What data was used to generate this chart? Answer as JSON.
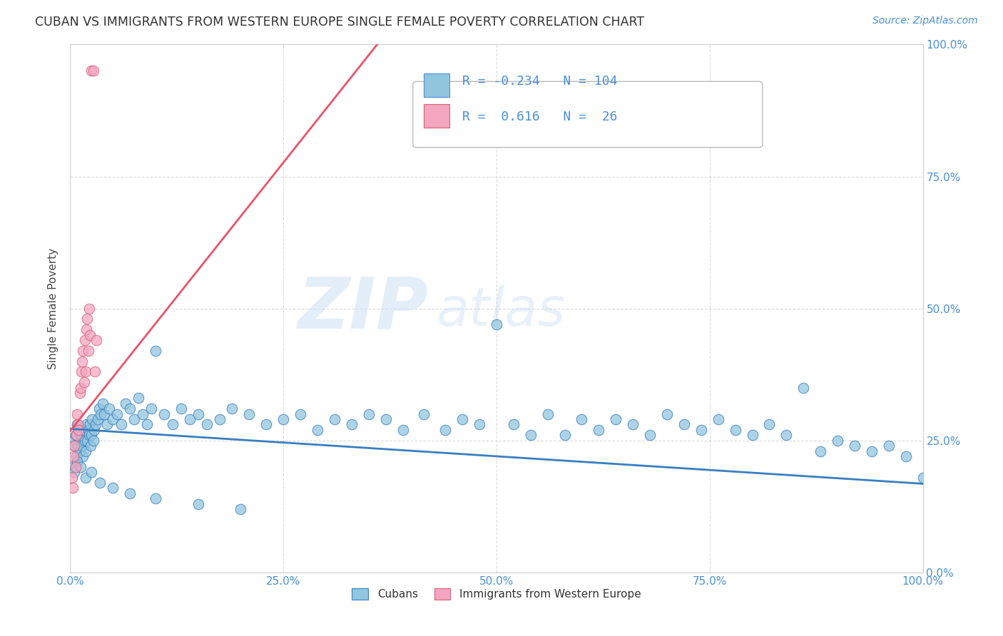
{
  "title": "CUBAN VS IMMIGRANTS FROM WESTERN EUROPE SINGLE FEMALE POVERTY CORRELATION CHART",
  "source": "Source: ZipAtlas.com",
  "ylabel": "Single Female Poverty",
  "xlim": [
    0,
    1.0
  ],
  "ylim": [
    0,
    1.0
  ],
  "xticks": [
    0.0,
    0.25,
    0.5,
    0.75,
    1.0
  ],
  "yticks": [
    0.0,
    0.25,
    0.5,
    0.75,
    1.0
  ],
  "xtick_labels": [
    "0.0%",
    "25.0%",
    "50.0%",
    "75.0%",
    "100.0%"
  ],
  "ytick_labels_right": [
    "0.0%",
    "25.0%",
    "50.0%",
    "75.0%",
    "100.0%"
  ],
  "blue_R": -0.234,
  "blue_N": 104,
  "pink_R": 0.616,
  "pink_N": 26,
  "blue_color": "#92c5de",
  "pink_color": "#f4a6c0",
  "blue_line_color": "#3a7fbf",
  "pink_line_color": "#e8546a",
  "background_color": "#ffffff",
  "watermark_zip": "ZIP",
  "watermark_atlas": "atlas",
  "grid_color": "#cccccc",
  "blue_line_start_y": 0.272,
  "blue_line_end_y": 0.168,
  "pink_line_start_x": 0.0,
  "pink_line_start_y": 0.268,
  "pink_line_end_x": 0.36,
  "pink_line_end_y": 1.0,
  "blue_x": [
    0.003,
    0.005,
    0.006,
    0.007,
    0.008,
    0.009,
    0.01,
    0.011,
    0.012,
    0.013,
    0.014,
    0.015,
    0.016,
    0.017,
    0.018,
    0.019,
    0.02,
    0.021,
    0.022,
    0.023,
    0.024,
    0.025,
    0.026,
    0.027,
    0.028,
    0.03,
    0.032,
    0.034,
    0.036,
    0.038,
    0.04,
    0.043,
    0.046,
    0.05,
    0.055,
    0.06,
    0.065,
    0.07,
    0.075,
    0.08,
    0.085,
    0.09,
    0.095,
    0.1,
    0.11,
    0.12,
    0.13,
    0.14,
    0.15,
    0.16,
    0.175,
    0.19,
    0.21,
    0.23,
    0.25,
    0.27,
    0.29,
    0.31,
    0.33,
    0.35,
    0.37,
    0.39,
    0.415,
    0.44,
    0.46,
    0.48,
    0.5,
    0.52,
    0.54,
    0.56,
    0.58,
    0.6,
    0.62,
    0.64,
    0.66,
    0.68,
    0.7,
    0.72,
    0.74,
    0.76,
    0.78,
    0.8,
    0.82,
    0.84,
    0.86,
    0.88,
    0.9,
    0.92,
    0.94,
    0.96,
    0.98,
    1.0,
    0.003,
    0.005,
    0.008,
    0.012,
    0.018,
    0.025,
    0.035,
    0.05,
    0.07,
    0.1,
    0.15,
    0.2
  ],
  "blue_y": [
    0.25,
    0.24,
    0.26,
    0.22,
    0.28,
    0.24,
    0.27,
    0.23,
    0.25,
    0.26,
    0.24,
    0.22,
    0.27,
    0.25,
    0.23,
    0.28,
    0.25,
    0.27,
    0.26,
    0.28,
    0.24,
    0.26,
    0.29,
    0.25,
    0.27,
    0.28,
    0.29,
    0.31,
    0.3,
    0.32,
    0.3,
    0.28,
    0.31,
    0.29,
    0.3,
    0.28,
    0.32,
    0.31,
    0.29,
    0.33,
    0.3,
    0.28,
    0.31,
    0.42,
    0.3,
    0.28,
    0.31,
    0.29,
    0.3,
    0.28,
    0.29,
    0.31,
    0.3,
    0.28,
    0.29,
    0.3,
    0.27,
    0.29,
    0.28,
    0.3,
    0.29,
    0.27,
    0.3,
    0.27,
    0.29,
    0.28,
    0.47,
    0.28,
    0.26,
    0.3,
    0.26,
    0.29,
    0.27,
    0.29,
    0.28,
    0.26,
    0.3,
    0.28,
    0.27,
    0.29,
    0.27,
    0.26,
    0.28,
    0.26,
    0.35,
    0.23,
    0.25,
    0.24,
    0.23,
    0.24,
    0.22,
    0.18,
    0.2,
    0.19,
    0.21,
    0.2,
    0.18,
    0.19,
    0.17,
    0.16,
    0.15,
    0.14,
    0.13,
    0.12
  ],
  "pink_x": [
    0.002,
    0.003,
    0.004,
    0.005,
    0.006,
    0.007,
    0.008,
    0.009,
    0.01,
    0.011,
    0.012,
    0.013,
    0.014,
    0.015,
    0.016,
    0.017,
    0.018,
    0.019,
    0.02,
    0.021,
    0.022,
    0.023,
    0.025,
    0.027,
    0.029,
    0.031
  ],
  "pink_y": [
    0.18,
    0.16,
    0.22,
    0.24,
    0.2,
    0.26,
    0.3,
    0.28,
    0.27,
    0.34,
    0.35,
    0.38,
    0.4,
    0.42,
    0.36,
    0.44,
    0.38,
    0.46,
    0.48,
    0.42,
    0.5,
    0.45,
    0.95,
    0.95,
    0.38,
    0.44
  ]
}
